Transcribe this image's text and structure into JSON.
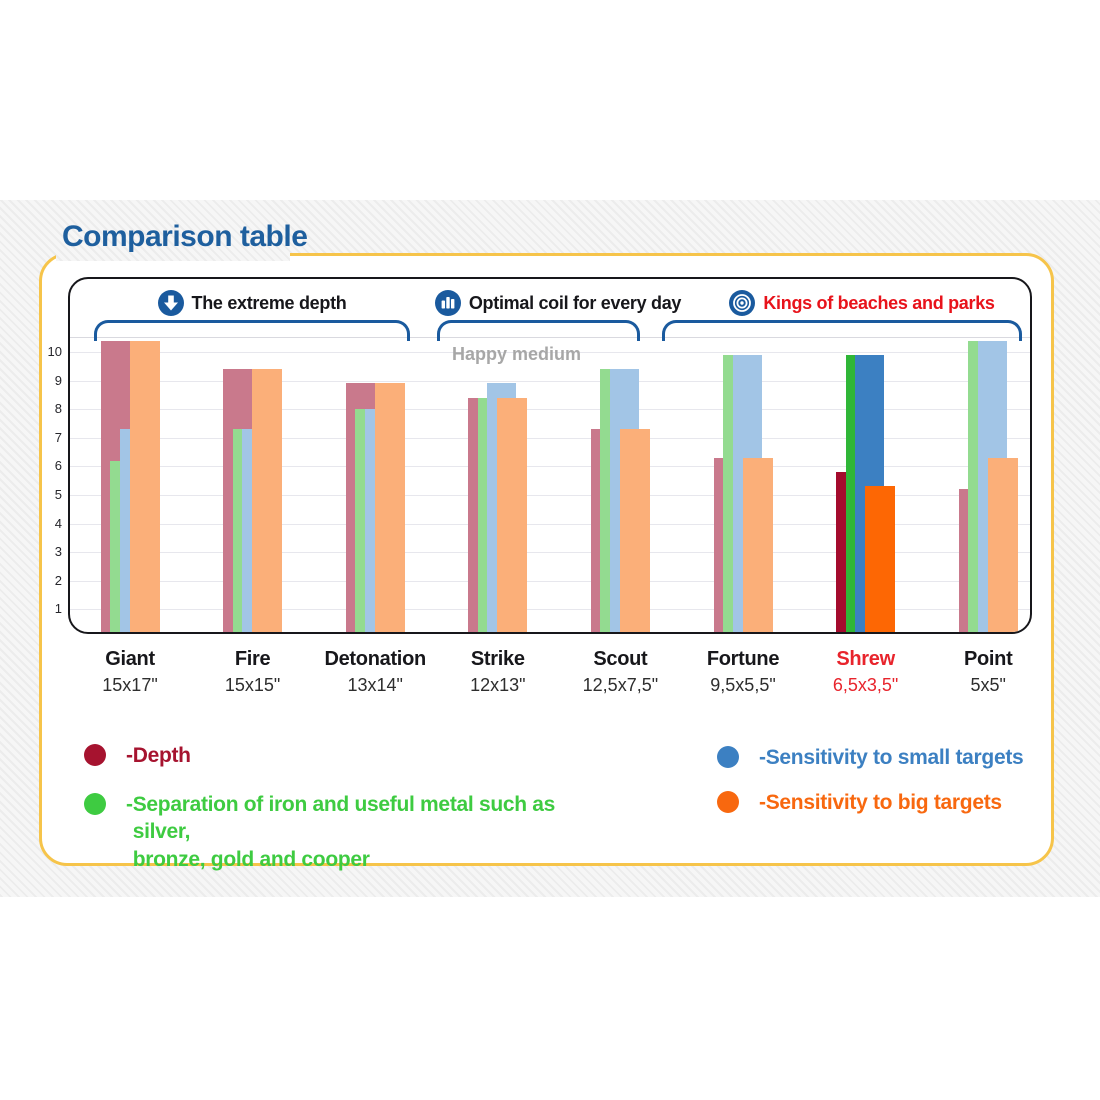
{
  "page": {
    "title": "Comparison table"
  },
  "sections": [
    {
      "label": "The extreme depth",
      "icon": "down-arrow-icon",
      "color": "#17171b",
      "models": [
        "Giant",
        "Fire",
        "Detonation"
      ]
    },
    {
      "label": "Optimal coil for every day",
      "icon": "bar-chart-icon",
      "color": "#17171b",
      "models": [
        "Strike",
        "Scout"
      ]
    },
    {
      "label": "Kings of beaches and parks",
      "icon": "bullseye-icon",
      "color": "#e8131b",
      "models": [
        "Fortune",
        "Shrew",
        "Point"
      ]
    }
  ],
  "annotation": "Happy medium",
  "colors": {
    "title_blue": "#1e5f9e",
    "accent_yellow": "#f6c44a",
    "bracket_blue": "#1a5a9e",
    "header_red": "#e8131b",
    "highlight_label_red": "#e8242c",
    "annotation_gray": "#a7a7a7"
  },
  "chart_data": {
    "type": "bar",
    "title": "Comparison table",
    "ylim": [
      0,
      10.5
    ],
    "yticks": [
      1,
      2,
      3,
      4,
      5,
      6,
      7,
      8,
      9,
      10
    ],
    "grid": true,
    "legend_position": "bottom",
    "series": [
      {
        "key": "depth",
        "name": "Depth",
        "color": "#c9798c",
        "highlight_color": "#a40b2d"
      },
      {
        "key": "separation",
        "name": "Separation of iron and useful metal such as silver, bronze, gold and cooper",
        "color": "#93db90",
        "highlight_color": "#2fb637"
      },
      {
        "key": "small_targets",
        "name": "Sensitivity to small targets",
        "color": "#a2c5e6",
        "highlight_color": "#3c80c2"
      },
      {
        "key": "big_targets",
        "name": "Sensitivity to big targets",
        "color": "#fbaf79",
        "highlight_color": "#fd6704"
      }
    ],
    "categories": [
      {
        "name": "Giant",
        "size": "15x17\"",
        "highlight": false,
        "values": {
          "depth": 10.4,
          "separation": 6.2,
          "small_targets": 7.3,
          "big_targets": 10.4
        }
      },
      {
        "name": "Fire",
        "size": "15x15\"",
        "highlight": false,
        "values": {
          "depth": 9.4,
          "separation": 7.3,
          "small_targets": 7.3,
          "big_targets": 9.4
        }
      },
      {
        "name": "Detonation",
        "size": "13x14\"",
        "highlight": false,
        "values": {
          "depth": 8.9,
          "separation": 8.0,
          "small_targets": 8.0,
          "big_targets": 8.9
        }
      },
      {
        "name": "Strike",
        "size": "12x13\"",
        "highlight": false,
        "values": {
          "depth": 8.4,
          "separation": 8.4,
          "small_targets": 8.9,
          "big_targets": 8.4
        }
      },
      {
        "name": "Scout",
        "size": "12,5x7,5\"",
        "highlight": false,
        "values": {
          "depth": 7.3,
          "separation": 9.4,
          "small_targets": 9.4,
          "big_targets": 7.3
        }
      },
      {
        "name": "Fortune",
        "size": "9,5x5,5\"",
        "highlight": false,
        "values": {
          "depth": 6.3,
          "separation": 9.9,
          "small_targets": 9.9,
          "big_targets": 6.3
        }
      },
      {
        "name": "Shrew",
        "size": "6,5x3,5\"",
        "highlight": true,
        "values": {
          "depth": 5.8,
          "separation": 9.9,
          "small_targets": 9.9,
          "big_targets": 5.3
        }
      },
      {
        "name": "Point",
        "size": "5x5\"",
        "highlight": false,
        "values": {
          "depth": 5.2,
          "separation": 10.4,
          "small_targets": 10.4,
          "big_targets": 6.3
        }
      }
    ]
  },
  "legend": {
    "dash": "- ",
    "items_left": [
      {
        "icon": "depth-swatch",
        "swatch": "#a6132f",
        "text": "Depth"
      },
      {
        "icon": "separation-swatch",
        "swatch": "#3ecb41",
        "text": "Separation of iron and useful metal such as silver,\nbronze, gold and cooper"
      }
    ],
    "items_right": [
      {
        "icon": "small-targets-swatch",
        "swatch": "#3c80c2",
        "text": "Sensitivity to small targets"
      },
      {
        "icon": "big-targets-swatch",
        "swatch": "#f8680f",
        "text": "Sensitivity to big targets"
      }
    ]
  }
}
